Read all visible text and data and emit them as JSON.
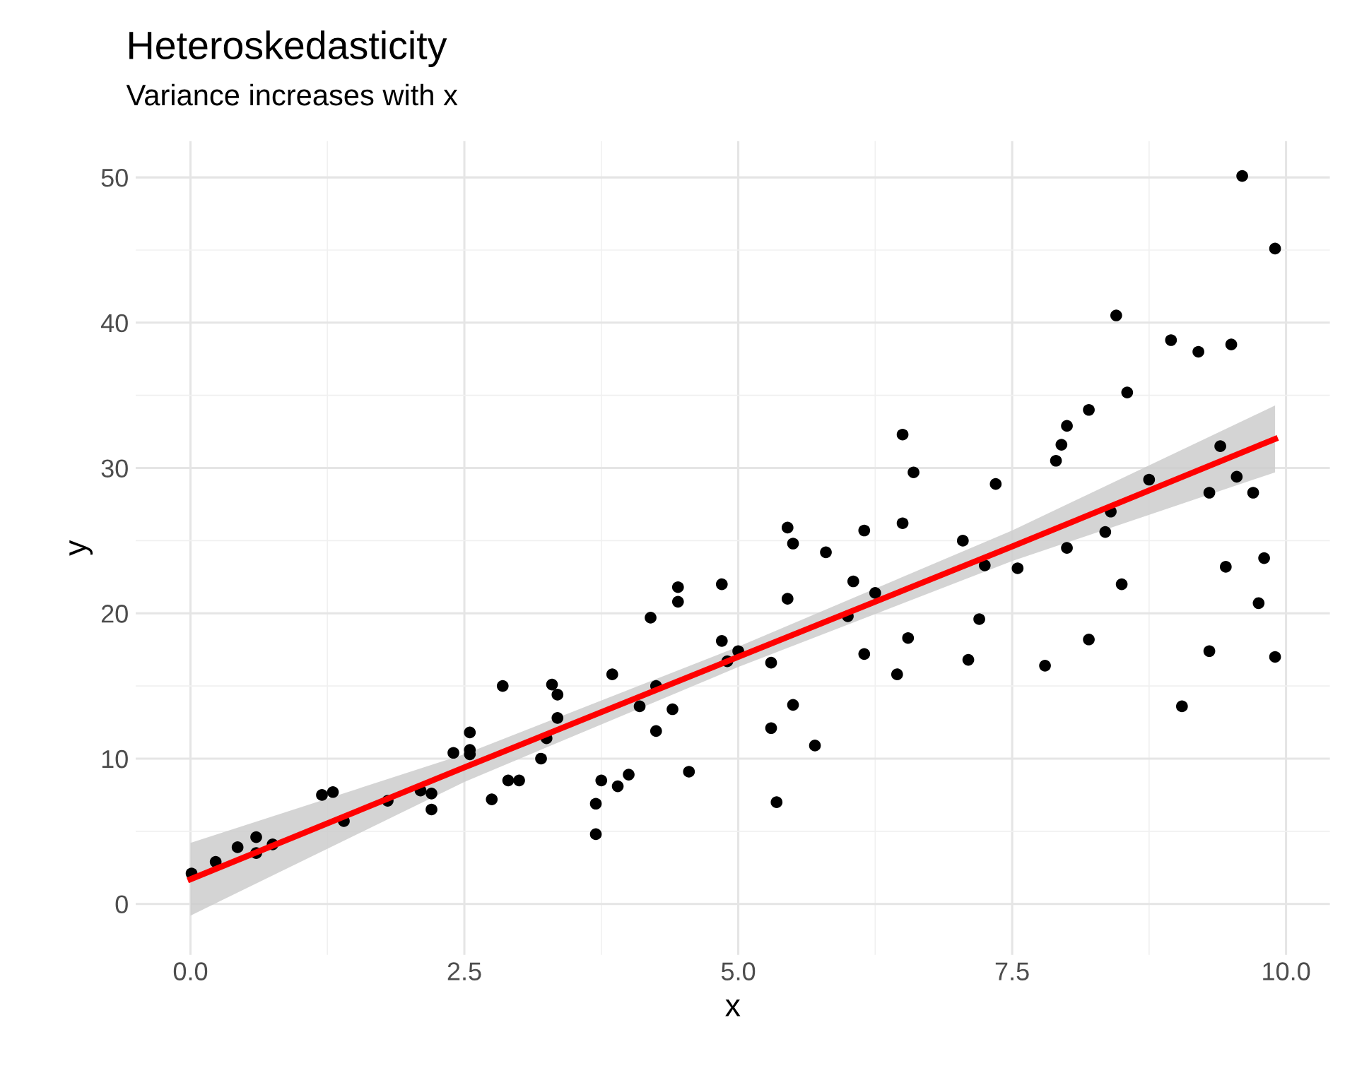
{
  "chart_data": {
    "type": "scatter",
    "title": "Heteroskedasticity",
    "subtitle": "Variance increases with x",
    "xlabel": "x",
    "ylabel": "y",
    "xlim": [
      -0.5,
      10.4
    ],
    "ylim": [
      -3.5,
      52.5
    ],
    "xticks": [
      {
        "value": 0,
        "label": "0.0"
      },
      {
        "value": 2.5,
        "label": "2.5"
      },
      {
        "value": 5,
        "label": "5.0"
      },
      {
        "value": 7.5,
        "label": "7.5"
      },
      {
        "value": 10,
        "label": "10.0"
      }
    ],
    "yticks": [
      0,
      10,
      20,
      30,
      40,
      50
    ],
    "grid": true,
    "marker": "circle",
    "series": [
      {
        "type": "scatter",
        "color": "#000000",
        "x": [
          0.01,
          0.23,
          0.43,
          0.6,
          0.6,
          0.75,
          1.2,
          1.3,
          1.4,
          1.8,
          2.1,
          2.2,
          2.2,
          2.4,
          2.55,
          2.55,
          2.55,
          2.75,
          2.85,
          2.9,
          3.0,
          3.2,
          3.25,
          3.3,
          3.35,
          3.35,
          3.7,
          3.7,
          3.75,
          3.85,
          3.9,
          4.0,
          4.1,
          4.2,
          4.25,
          4.25,
          4.4,
          4.45,
          4.45,
          4.55,
          4.85,
          4.85,
          4.9,
          5.0,
          5.3,
          5.3,
          5.35,
          5.45,
          5.45,
          5.5,
          5.5,
          5.7,
          5.8,
          6.0,
          6.05,
          6.15,
          6.15,
          6.25,
          6.45,
          6.5,
          6.5,
          6.55,
          6.6,
          7.05,
          7.1,
          7.2,
          7.25,
          7.35,
          7.55,
          7.8,
          7.9,
          7.95,
          8.0,
          8.0,
          8.2,
          8.2,
          8.35,
          8.4,
          8.45,
          8.5,
          8.55,
          8.75,
          8.95,
          9.05,
          9.2,
          9.3,
          9.3,
          9.4,
          9.45,
          9.5,
          9.55,
          9.6,
          9.7,
          9.75,
          9.8,
          9.9,
          9.9
        ],
        "values": [
          2.1,
          2.9,
          3.9,
          4.6,
          3.5,
          4.1,
          7.5,
          7.7,
          5.7,
          7.1,
          7.8,
          7.6,
          6.5,
          10.4,
          10.3,
          10.6,
          11.8,
          7.2,
          15.0,
          8.5,
          8.5,
          10.0,
          11.4,
          15.1,
          14.4,
          12.8,
          6.9,
          4.8,
          8.5,
          15.8,
          8.1,
          8.9,
          13.6,
          19.7,
          11.9,
          15.0,
          13.4,
          20.8,
          21.8,
          9.1,
          18.1,
          22.0,
          16.7,
          17.4,
          16.6,
          12.1,
          7.0,
          21.0,
          25.9,
          24.8,
          13.7,
          10.9,
          24.2,
          19.8,
          22.2,
          25.7,
          17.2,
          21.4,
          15.8,
          32.3,
          26.2,
          18.3,
          29.7,
          25.0,
          16.8,
          19.6,
          23.3,
          28.9,
          23.1,
          16.4,
          30.5,
          31.6,
          32.9,
          24.5,
          34.0,
          18.2,
          25.6,
          27.0,
          40.5,
          22.0,
          35.2,
          29.2,
          38.8,
          13.6,
          38.0,
          28.3,
          17.4,
          31.5,
          23.2,
          38.5,
          29.4,
          50.1,
          28.3,
          20.7,
          23.8,
          17.0,
          45.1
        ]
      },
      {
        "type": "line",
        "color": "#ff0000",
        "line_style": "solid",
        "marker": "none",
        "x": [
          0,
          2.5,
          5,
          7.5,
          9.9
        ],
        "values": [
          1.7,
          9.4,
          17.0,
          24.6,
          32.0
        ],
        "lower": [
          -0.8,
          8.4,
          16.3,
          23.6,
          29.7
        ],
        "upper": [
          4.2,
          10.3,
          17.7,
          25.7,
          34.3
        ]
      }
    ]
  }
}
